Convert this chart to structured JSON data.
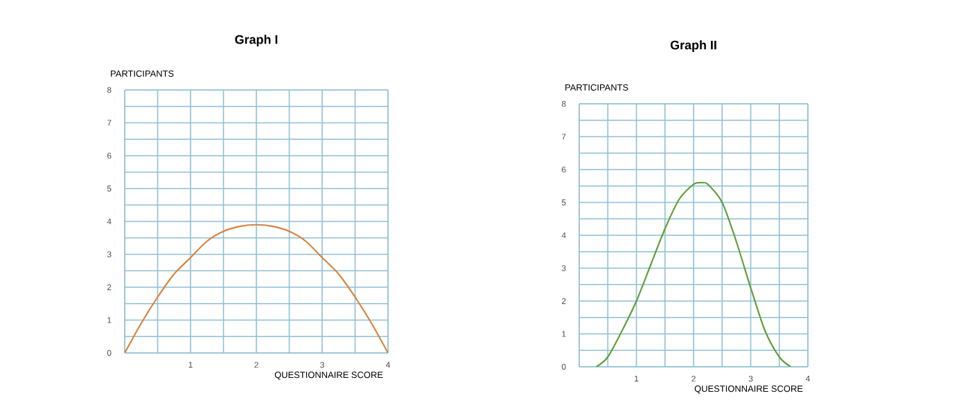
{
  "chart_data": [
    {
      "type": "line",
      "title": "Graph I",
      "xlabel": "QUESTIONNAIRE SCORE",
      "ylabel": "PARTICIPANTS",
      "xlim": [
        0,
        4
      ],
      "ylim": [
        0,
        8
      ],
      "xticks": [
        {
          "value": 0,
          "label": null
        },
        {
          "value": 0.5,
          "label": null
        },
        1,
        {
          "value": 1.5,
          "label": null
        },
        2,
        {
          "value": 2.5,
          "label": null
        },
        3,
        {
          "value": 3.5,
          "label": null
        },
        4
      ],
      "yticks": [
        0,
        {
          "value": 0.5,
          "label": null
        },
        1,
        {
          "value": 1.5,
          "label": null
        },
        2,
        {
          "value": 2.5,
          "label": null
        },
        3,
        {
          "value": 3.5,
          "label": null
        },
        4,
        {
          "value": 4.5,
          "label": null
        },
        5,
        {
          "value": 5.5,
          "label": null
        },
        6,
        {
          "value": 6.5,
          "label": null
        },
        7,
        {
          "value": 7.5,
          "label": null
        },
        8
      ],
      "grid": true,
      "marker": "none",
      "series": [
        {
          "color": "#d9823b",
          "x": [
            0,
            0.25,
            0.5,
            0.75,
            1,
            1.25,
            1.5,
            1.75,
            2,
            2.25,
            2.5,
            2.75,
            3,
            3.25,
            3.5,
            3.75,
            4
          ],
          "values": [
            0,
            0.9,
            1.7,
            2.4,
            2.9,
            3.4,
            3.7,
            3.85,
            3.9,
            3.85,
            3.7,
            3.4,
            2.9,
            2.4,
            1.7,
            0.9,
            0
          ]
        }
      ]
    },
    {
      "type": "line",
      "title": "Graph II",
      "xlabel": "QUESTIONNAIRE SCORE",
      "ylabel": "PARTICIPANTS",
      "xlim": [
        0,
        4
      ],
      "ylim": [
        0,
        8
      ],
      "xticks": [
        {
          "value": 0,
          "label": null
        },
        {
          "value": 0.5,
          "label": null
        },
        1,
        {
          "value": 1.5,
          "label": null
        },
        2,
        {
          "value": 2.5,
          "label": null
        },
        3,
        {
          "value": 3.5,
          "label": null
        },
        4
      ],
      "yticks": [
        0,
        {
          "value": 0.5,
          "label": null
        },
        1,
        {
          "value": 1.5,
          "label": null
        },
        2,
        {
          "value": 2.5,
          "label": null
        },
        3,
        {
          "value": 3.5,
          "label": null
        },
        4,
        {
          "value": 4.5,
          "label": null
        },
        5,
        {
          "value": 5.5,
          "label": null
        },
        6,
        {
          "value": 6.5,
          "label": null
        },
        7,
        {
          "value": 7.5,
          "label": null
        },
        8
      ],
      "grid": true,
      "marker": "none",
      "series": [
        {
          "color": "#5f9e3a",
          "x": [
            0.3,
            0.5,
            0.75,
            1,
            1.25,
            1.5,
            1.75,
            2,
            2.15,
            2.25,
            2.5,
            2.75,
            3,
            3.25,
            3.5,
            3.7
          ],
          "values": [
            0,
            0.3,
            1.1,
            2.0,
            3.1,
            4.2,
            5.1,
            5.55,
            5.6,
            5.55,
            5.0,
            3.8,
            2.4,
            1.1,
            0.3,
            0
          ]
        }
      ]
    }
  ]
}
